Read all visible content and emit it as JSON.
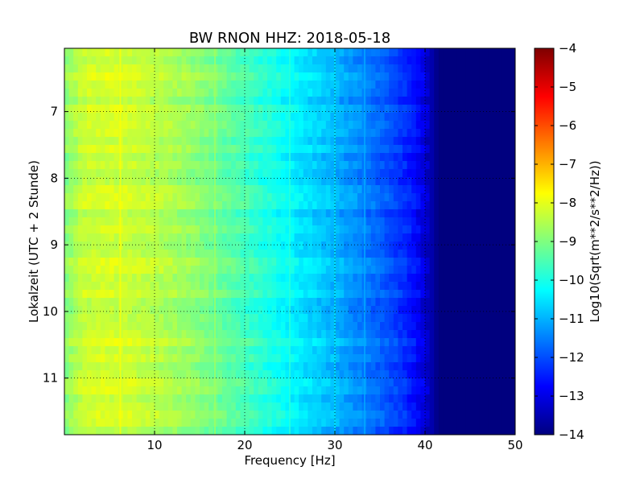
{
  "chart_data": {
    "type": "heatmap",
    "title": "BW RNON HHZ: 2018-05-18",
    "xlabel": "Frequency [Hz]",
    "ylabel": "Lokalzeit (UTC + 2 Stunde)",
    "xlim": [
      0,
      50
    ],
    "ylim": [
      6.05,
      11.85
    ],
    "y_inverted": true,
    "x_ticks": [
      10,
      20,
      30,
      40,
      50
    ],
    "y_ticks": [
      7,
      8,
      9,
      10,
      11
    ],
    "grid": true,
    "colormap": "jet",
    "colorbar": {
      "label": "Log10(Sqrt(m**2/s**2/Hz))",
      "range": [
        -14,
        -4
      ],
      "ticks": [
        -4,
        -5,
        -6,
        -7,
        -8,
        -9,
        -10,
        -11,
        -12,
        -13,
        -14
      ]
    },
    "frequency_profile_hz": [
      0,
      2,
      5,
      8,
      12,
      15,
      20,
      25,
      30,
      35,
      38,
      39.5,
      40.5,
      41,
      41.5,
      50
    ],
    "amplitude_profile_log10": [
      -9.0,
      -8.3,
      -8.2,
      -8.3,
      -8.6,
      -8.9,
      -9.6,
      -10.3,
      -11.0,
      -11.8,
      -12.4,
      -12.9,
      -13.4,
      -13.7,
      -14.0,
      -14.0
    ],
    "spectral_lines_hz": [
      6.2,
      16.7,
      25.0,
      30.0,
      33.3
    ],
    "colors": {
      "jet": [
        "#00007f",
        "#0000ff",
        "#007fff",
        "#00ffff",
        "#7fff7f",
        "#ffff00",
        "#ff7f00",
        "#ff0000",
        "#7f0000"
      ]
    }
  }
}
